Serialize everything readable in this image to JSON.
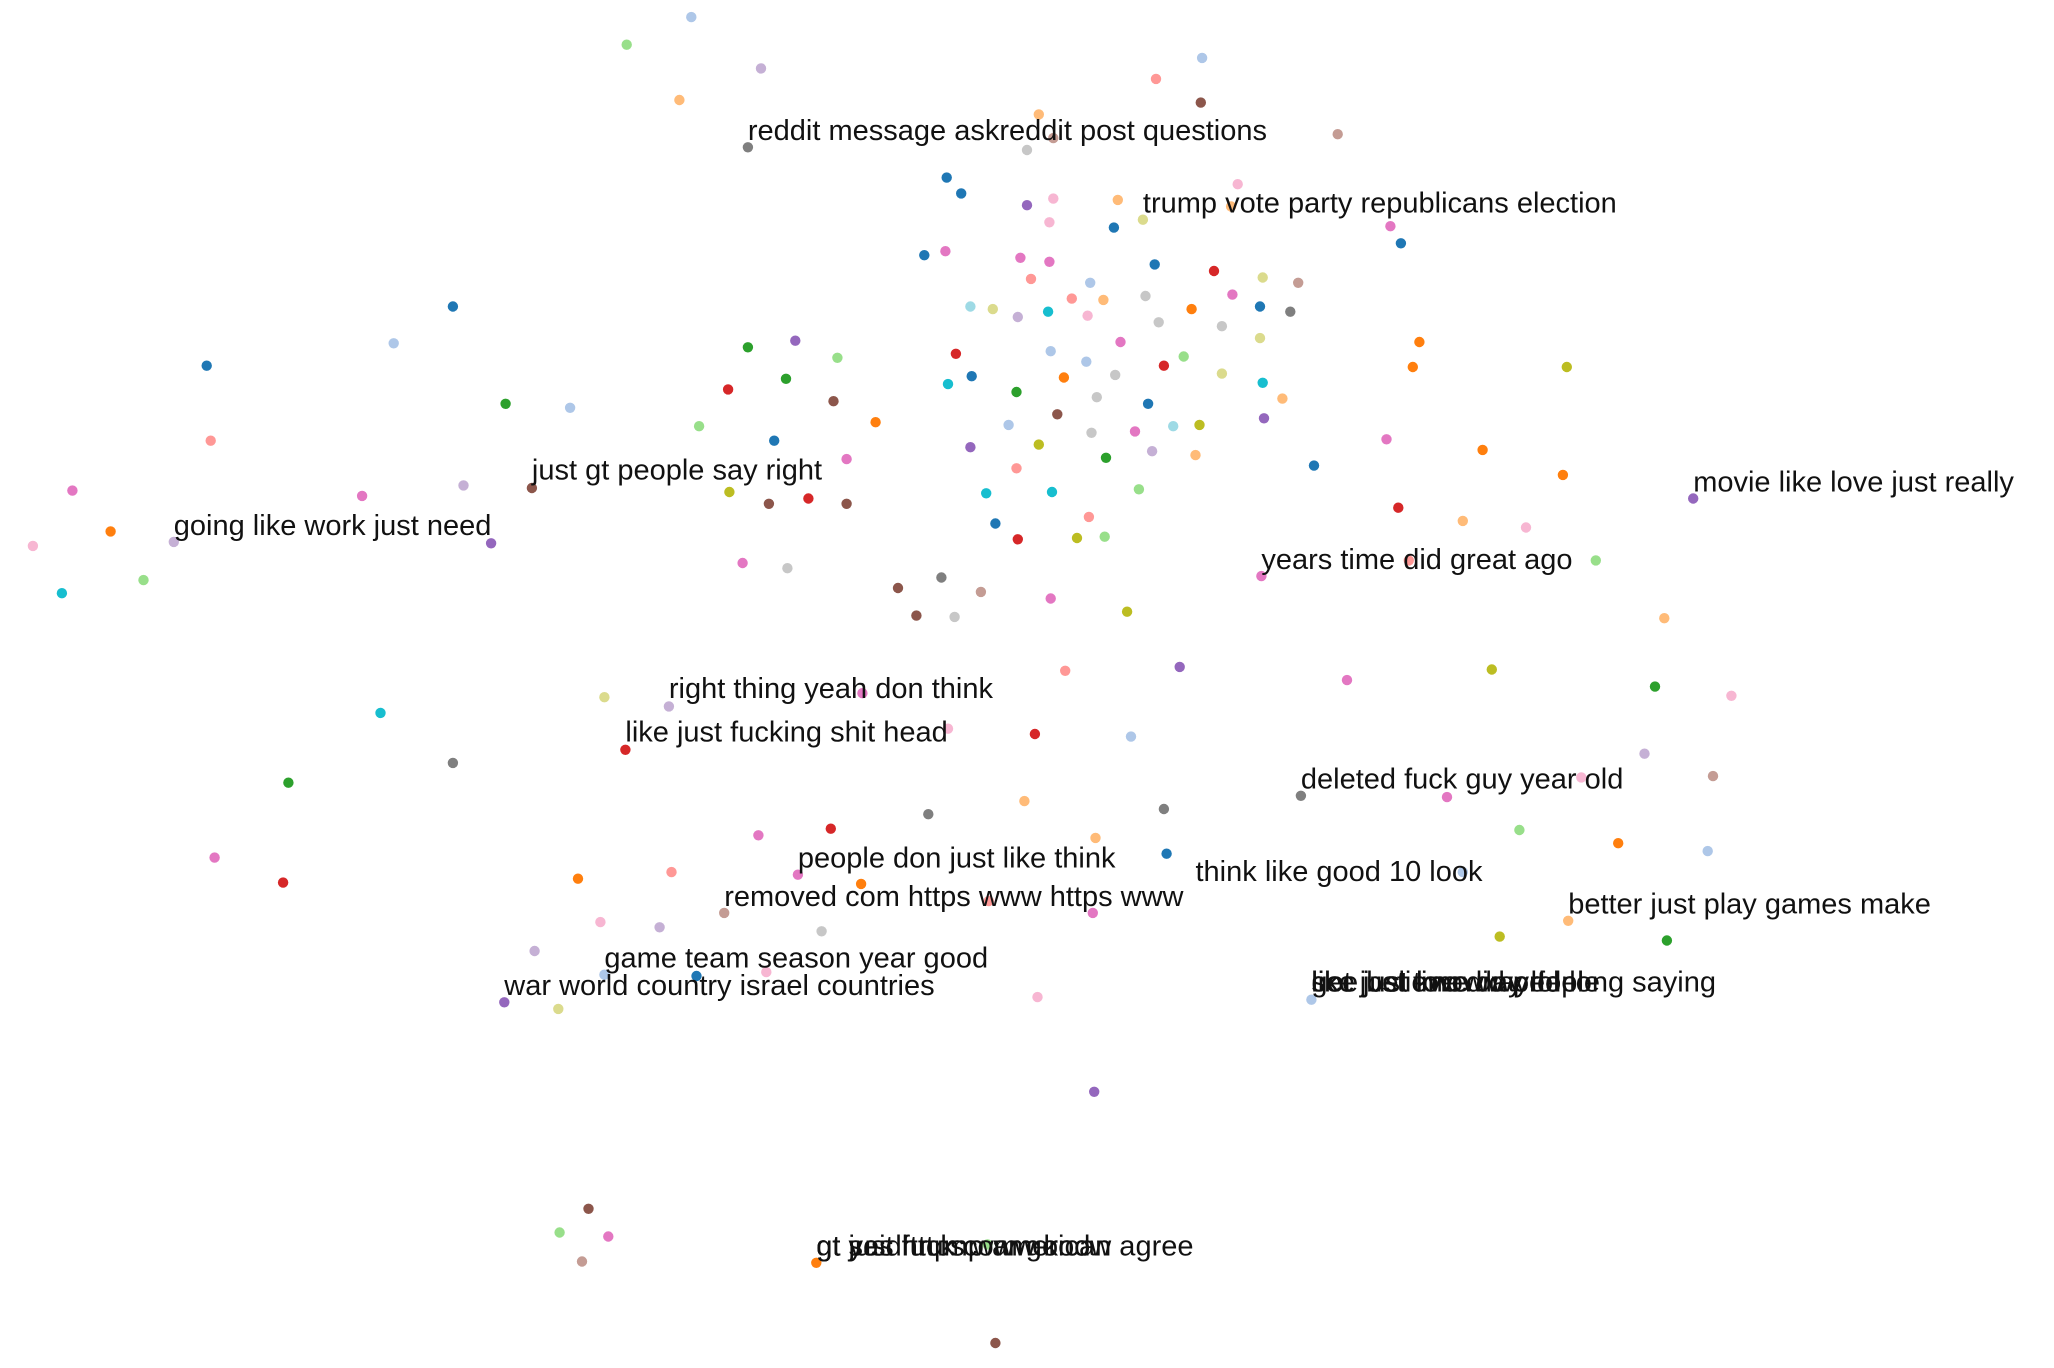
{
  "chart_data": {
    "type": "scatter",
    "title": "",
    "xlabel": "",
    "ylabel": "",
    "grid": false,
    "legend": "none",
    "xlim": [
      0,
      1560
    ],
    "ylim": [
      0,
      1040
    ],
    "points": [
      {
        "x": 525,
        "y": 13,
        "color": "#aec7e8"
      },
      {
        "x": 476,
        "y": 34,
        "color": "#98df8a"
      },
      {
        "x": 578,
        "y": 52,
        "color": "#c5b0d5"
      },
      {
        "x": 516,
        "y": 76,
        "color": "#ffbb78"
      },
      {
        "x": 913,
        "y": 44,
        "color": "#aec7e8"
      },
      {
        "x": 878,
        "y": 60,
        "color": "#ff9896"
      },
      {
        "x": 912,
        "y": 78,
        "color": "#8c564b"
      },
      {
        "x": 789,
        "y": 87,
        "color": "#ffbb78"
      },
      {
        "x": 1016,
        "y": 102,
        "color": "#c49c94"
      },
      {
        "x": 568,
        "y": 112,
        "color": "#7f7f7f"
      },
      {
        "x": 780,
        "y": 114,
        "color": "#c7c7c7"
      },
      {
        "x": 800,
        "y": 105,
        "color": "#c49c94"
      },
      {
        "x": 719,
        "y": 135,
        "color": "#1f77b4"
      },
      {
        "x": 730,
        "y": 147,
        "color": "#1f77b4"
      },
      {
        "x": 780,
        "y": 156,
        "color": "#9467bd"
      },
      {
        "x": 800,
        "y": 151,
        "color": "#f7b6d2"
      },
      {
        "x": 849,
        "y": 152,
        "color": "#ffbb78"
      },
      {
        "x": 940,
        "y": 140,
        "color": "#f7b6d2"
      },
      {
        "x": 935,
        "y": 157,
        "color": "#ffbb78"
      },
      {
        "x": 868,
        "y": 167,
        "color": "#dbdb8d"
      },
      {
        "x": 846,
        "y": 173,
        "color": "#1f77b4"
      },
      {
        "x": 797,
        "y": 169,
        "color": "#f7b6d2"
      },
      {
        "x": 1056,
        "y": 172,
        "color": "#e377c2"
      },
      {
        "x": 1064,
        "y": 185,
        "color": "#1f77b4"
      },
      {
        "x": 702,
        "y": 194,
        "color": "#1f77b4"
      },
      {
        "x": 718,
        "y": 191,
        "color": "#e377c2"
      },
      {
        "x": 775,
        "y": 196,
        "color": "#e377c2"
      },
      {
        "x": 797,
        "y": 199,
        "color": "#e377c2"
      },
      {
        "x": 877,
        "y": 201,
        "color": "#1f77b4"
      },
      {
        "x": 922,
        "y": 206,
        "color": "#d62728"
      },
      {
        "x": 959,
        "y": 211,
        "color": "#dbdb8d"
      },
      {
        "x": 986,
        "y": 215,
        "color": "#c49c94"
      },
      {
        "x": 783,
        "y": 212,
        "color": "#ff9896"
      },
      {
        "x": 828,
        "y": 215,
        "color": "#aec7e8"
      },
      {
        "x": 936,
        "y": 224,
        "color": "#e377c2"
      },
      {
        "x": 737,
        "y": 233,
        "color": "#9edae5"
      },
      {
        "x": 754,
        "y": 235,
        "color": "#dbdb8d"
      },
      {
        "x": 773,
        "y": 241,
        "color": "#c5b0d5"
      },
      {
        "x": 796,
        "y": 237,
        "color": "#17becf"
      },
      {
        "x": 814,
        "y": 227,
        "color": "#ff9896"
      },
      {
        "x": 826,
        "y": 240,
        "color": "#f7b6d2"
      },
      {
        "x": 838,
        "y": 228,
        "color": "#ffbb78"
      },
      {
        "x": 870,
        "y": 225,
        "color": "#c7c7c7"
      },
      {
        "x": 880,
        "y": 245,
        "color": "#c7c7c7"
      },
      {
        "x": 905,
        "y": 235,
        "color": "#ff7f0e"
      },
      {
        "x": 928,
        "y": 248,
        "color": "#c7c7c7"
      },
      {
        "x": 957,
        "y": 233,
        "color": "#1f77b4"
      },
      {
        "x": 980,
        "y": 237,
        "color": "#7f7f7f"
      },
      {
        "x": 957,
        "y": 257,
        "color": "#dbdb8d"
      },
      {
        "x": 344,
        "y": 233,
        "color": "#1f77b4"
      },
      {
        "x": 299,
        "y": 261,
        "color": "#aec7e8"
      },
      {
        "x": 157,
        "y": 278,
        "color": "#1f77b4"
      },
      {
        "x": 568,
        "y": 264,
        "color": "#2ca02c"
      },
      {
        "x": 604,
        "y": 259,
        "color": "#9467bd"
      },
      {
        "x": 636,
        "y": 272,
        "color": "#98df8a"
      },
      {
        "x": 726,
        "y": 269,
        "color": "#d62728"
      },
      {
        "x": 798,
        "y": 267,
        "color": "#aec7e8"
      },
      {
        "x": 825,
        "y": 275,
        "color": "#aec7e8"
      },
      {
        "x": 851,
        "y": 260,
        "color": "#e377c2"
      },
      {
        "x": 884,
        "y": 278,
        "color": "#d62728"
      },
      {
        "x": 899,
        "y": 271,
        "color": "#98df8a"
      },
      {
        "x": 928,
        "y": 284,
        "color": "#dbdb8d"
      },
      {
        "x": 959,
        "y": 291,
        "color": "#17becf"
      },
      {
        "x": 974,
        "y": 303,
        "color": "#ffbb78"
      },
      {
        "x": 1078,
        "y": 260,
        "color": "#ff7f0e"
      },
      {
        "x": 1073,
        "y": 279,
        "color": "#ff7f0e"
      },
      {
        "x": 1190,
        "y": 279,
        "color": "#bcbd22"
      },
      {
        "x": 597,
        "y": 288,
        "color": "#2ca02c"
      },
      {
        "x": 553,
        "y": 296,
        "color": "#d62728"
      },
      {
        "x": 738,
        "y": 286,
        "color": "#1f77b4"
      },
      {
        "x": 720,
        "y": 292,
        "color": "#17becf"
      },
      {
        "x": 772,
        "y": 298,
        "color": "#2ca02c"
      },
      {
        "x": 808,
        "y": 287,
        "color": "#ff7f0e"
      },
      {
        "x": 847,
        "y": 285,
        "color": "#c7c7c7"
      },
      {
        "x": 833,
        "y": 302,
        "color": "#c7c7c7"
      },
      {
        "x": 872,
        "y": 307,
        "color": "#1f77b4"
      },
      {
        "x": 633,
        "y": 305,
        "color": "#8c564b"
      },
      {
        "x": 384,
        "y": 307,
        "color": "#2ca02c"
      },
      {
        "x": 433,
        "y": 310,
        "color": "#aec7e8"
      },
      {
        "x": 160,
        "y": 335,
        "color": "#ff9896"
      },
      {
        "x": 665,
        "y": 321,
        "color": "#ff7f0e"
      },
      {
        "x": 531,
        "y": 324,
        "color": "#98df8a"
      },
      {
        "x": 588,
        "y": 335,
        "color": "#1f77b4"
      },
      {
        "x": 766,
        "y": 323,
        "color": "#aec7e8"
      },
      {
        "x": 803,
        "y": 315,
        "color": "#8c564b"
      },
      {
        "x": 829,
        "y": 329,
        "color": "#c7c7c7"
      },
      {
        "x": 862,
        "y": 328,
        "color": "#e377c2"
      },
      {
        "x": 891,
        "y": 324,
        "color": "#9edae5"
      },
      {
        "x": 911,
        "y": 323,
        "color": "#bcbd22"
      },
      {
        "x": 960,
        "y": 318,
        "color": "#9467bd"
      },
      {
        "x": 998,
        "y": 354,
        "color": "#1f77b4"
      },
      {
        "x": 1053,
        "y": 334,
        "color": "#e377c2"
      },
      {
        "x": 1126,
        "y": 342,
        "color": "#ff7f0e"
      },
      {
        "x": 1187,
        "y": 361,
        "color": "#ff7f0e"
      },
      {
        "x": 737,
        "y": 340,
        "color": "#9467bd"
      },
      {
        "x": 789,
        "y": 338,
        "color": "#bcbd22"
      },
      {
        "x": 840,
        "y": 348,
        "color": "#2ca02c"
      },
      {
        "x": 875,
        "y": 343,
        "color": "#c5b0d5"
      },
      {
        "x": 908,
        "y": 346,
        "color": "#ffbb78"
      },
      {
        "x": 643,
        "y": 349,
        "color": "#e377c2"
      },
      {
        "x": 772,
        "y": 356,
        "color": "#ff9896"
      },
      {
        "x": 55,
        "y": 373,
        "color": "#e377c2"
      },
      {
        "x": 275,
        "y": 377,
        "color": "#e377c2"
      },
      {
        "x": 352,
        "y": 369,
        "color": "#c5b0d5"
      },
      {
        "x": 404,
        "y": 371,
        "color": "#8c564b"
      },
      {
        "x": 554,
        "y": 374,
        "color": "#bcbd22"
      },
      {
        "x": 614,
        "y": 379,
        "color": "#d62728"
      },
      {
        "x": 584,
        "y": 383,
        "color": "#8c564b"
      },
      {
        "x": 643,
        "y": 383,
        "color": "#8c564b"
      },
      {
        "x": 749,
        "y": 375,
        "color": "#17becf"
      },
      {
        "x": 799,
        "y": 374,
        "color": "#17becf"
      },
      {
        "x": 865,
        "y": 372,
        "color": "#98df8a"
      },
      {
        "x": 1062,
        "y": 386,
        "color": "#d62728"
      },
      {
        "x": 1111,
        "y": 396,
        "color": "#ffbb78"
      },
      {
        "x": 1159,
        "y": 401,
        "color": "#f7b6d2"
      },
      {
        "x": 1286,
        "y": 379,
        "color": "#9467bd"
      },
      {
        "x": 84,
        "y": 404,
        "color": "#ff7f0e"
      },
      {
        "x": 132,
        "y": 412,
        "color": "#c5b0d5"
      },
      {
        "x": 25,
        "y": 415,
        "color": "#f7b6d2"
      },
      {
        "x": 373,
        "y": 413,
        "color": "#9467bd"
      },
      {
        "x": 756,
        "y": 398,
        "color": "#1f77b4"
      },
      {
        "x": 773,
        "y": 410,
        "color": "#d62728"
      },
      {
        "x": 818,
        "y": 409,
        "color": "#bcbd22"
      },
      {
        "x": 839,
        "y": 408,
        "color": "#98df8a"
      },
      {
        "x": 827,
        "y": 393,
        "color": "#ff9896"
      },
      {
        "x": 1070,
        "y": 426,
        "color": "#ff9896"
      },
      {
        "x": 1212,
        "y": 426,
        "color": "#98df8a"
      },
      {
        "x": 564,
        "y": 428,
        "color": "#e377c2"
      },
      {
        "x": 598,
        "y": 432,
        "color": "#c7c7c7"
      },
      {
        "x": 958,
        "y": 438,
        "color": "#e377c2"
      },
      {
        "x": 109,
        "y": 441,
        "color": "#98df8a"
      },
      {
        "x": 47,
        "y": 451,
        "color": "#17becf"
      },
      {
        "x": 715,
        "y": 439,
        "color": "#7f7f7f"
      },
      {
        "x": 682,
        "y": 447,
        "color": "#8c564b"
      },
      {
        "x": 745,
        "y": 450,
        "color": "#c49c94"
      },
      {
        "x": 798,
        "y": 455,
        "color": "#e377c2"
      },
      {
        "x": 696,
        "y": 468,
        "color": "#8c564b"
      },
      {
        "x": 725,
        "y": 469,
        "color": "#c7c7c7"
      },
      {
        "x": 856,
        "y": 465,
        "color": "#bcbd22"
      },
      {
        "x": 1264,
        "y": 470,
        "color": "#ffbb78"
      },
      {
        "x": 896,
        "y": 507,
        "color": "#9467bd"
      },
      {
        "x": 809,
        "y": 510,
        "color": "#ff9896"
      },
      {
        "x": 1133,
        "y": 509,
        "color": "#bcbd22"
      },
      {
        "x": 1023,
        "y": 517,
        "color": "#e377c2"
      },
      {
        "x": 1257,
        "y": 522,
        "color": "#2ca02c"
      },
      {
        "x": 1315,
        "y": 529,
        "color": "#f7b6d2"
      },
      {
        "x": 459,
        "y": 530,
        "color": "#dbdb8d"
      },
      {
        "x": 508,
        "y": 537,
        "color": "#c5b0d5"
      },
      {
        "x": 655,
        "y": 527,
        "color": "#e377c2"
      },
      {
        "x": 289,
        "y": 542,
        "color": "#17becf"
      },
      {
        "x": 720,
        "y": 554,
        "color": "#f7b6d2"
      },
      {
        "x": 786,
        "y": 558,
        "color": "#d62728"
      },
      {
        "x": 859,
        "y": 560,
        "color": "#aec7e8"
      },
      {
        "x": 475,
        "y": 570,
        "color": "#d62728"
      },
      {
        "x": 1249,
        "y": 573,
        "color": "#c5b0d5"
      },
      {
        "x": 344,
        "y": 580,
        "color": "#7f7f7f"
      },
      {
        "x": 1201,
        "y": 591,
        "color": "#f7b6d2"
      },
      {
        "x": 1301,
        "y": 590,
        "color": "#c49c94"
      },
      {
        "x": 219,
        "y": 595,
        "color": "#2ca02c"
      },
      {
        "x": 988,
        "y": 605,
        "color": "#7f7f7f"
      },
      {
        "x": 1099,
        "y": 606,
        "color": "#e377c2"
      },
      {
        "x": 778,
        "y": 609,
        "color": "#ffbb78"
      },
      {
        "x": 884,
        "y": 615,
        "color": "#7f7f7f"
      },
      {
        "x": 705,
        "y": 619,
        "color": "#7f7f7f"
      },
      {
        "x": 631,
        "y": 630,
        "color": "#d62728"
      },
      {
        "x": 576,
        "y": 635,
        "color": "#e377c2"
      },
      {
        "x": 832,
        "y": 637,
        "color": "#ffbb78"
      },
      {
        "x": 1154,
        "y": 631,
        "color": "#98df8a"
      },
      {
        "x": 1229,
        "y": 641,
        "color": "#ff7f0e"
      },
      {
        "x": 1297,
        "y": 647,
        "color": "#aec7e8"
      },
      {
        "x": 886,
        "y": 649,
        "color": "#1f77b4"
      },
      {
        "x": 163,
        "y": 652,
        "color": "#e377c2"
      },
      {
        "x": 510,
        "y": 663,
        "color": "#ff9896"
      },
      {
        "x": 439,
        "y": 668,
        "color": "#ff7f0e"
      },
      {
        "x": 606,
        "y": 665,
        "color": "#e377c2"
      },
      {
        "x": 654,
        "y": 672,
        "color": "#ff7f0e"
      },
      {
        "x": 1111,
        "y": 663,
        "color": "#aec7e8"
      },
      {
        "x": 215,
        "y": 671,
        "color": "#d62728"
      },
      {
        "x": 751,
        "y": 685,
        "color": "#ff9896"
      },
      {
        "x": 550,
        "y": 694,
        "color": "#c49c94"
      },
      {
        "x": 830,
        "y": 694,
        "color": "#e377c2"
      },
      {
        "x": 1191,
        "y": 700,
        "color": "#ffbb78"
      },
      {
        "x": 456,
        "y": 701,
        "color": "#f7b6d2"
      },
      {
        "x": 501,
        "y": 705,
        "color": "#c5b0d5"
      },
      {
        "x": 624,
        "y": 708,
        "color": "#c7c7c7"
      },
      {
        "x": 1139,
        "y": 712,
        "color": "#bcbd22"
      },
      {
        "x": 1266,
        "y": 715,
        "color": "#2ca02c"
      },
      {
        "x": 406,
        "y": 723,
        "color": "#c5b0d5"
      },
      {
        "x": 459,
        "y": 741,
        "color": "#aec7e8"
      },
      {
        "x": 529,
        "y": 742,
        "color": "#1f77b4"
      },
      {
        "x": 582,
        "y": 739,
        "color": "#f7b6d2"
      },
      {
        "x": 788,
        "y": 758,
        "color": "#f7b6d2"
      },
      {
        "x": 996,
        "y": 760,
        "color": "#aec7e8"
      },
      {
        "x": 383,
        "y": 762,
        "color": "#9467bd"
      },
      {
        "x": 424,
        "y": 767,
        "color": "#dbdb8d"
      },
      {
        "x": 831,
        "y": 830,
        "color": "#9467bd"
      },
      {
        "x": 447,
        "y": 919,
        "color": "#8c564b"
      },
      {
        "x": 425,
        "y": 937,
        "color": "#98df8a"
      },
      {
        "x": 462,
        "y": 940,
        "color": "#e377c2"
      },
      {
        "x": 750,
        "y": 946,
        "color": "#98df8a"
      },
      {
        "x": 442,
        "y": 959,
        "color": "#c49c94"
      },
      {
        "x": 620,
        "y": 960,
        "color": "#ff7f0e"
      },
      {
        "x": 756,
        "y": 1021,
        "color": "#8c564b"
      }
    ],
    "annotations": [
      {
        "text": "reddit message askreddit post questions",
        "x": 568,
        "y": 99
      },
      {
        "text": "trump vote party republicans election",
        "x": 868,
        "y": 154
      },
      {
        "text": "just gt people say right",
        "x": 404,
        "y": 357
      },
      {
        "text": "movie like love just really",
        "x": 1286,
        "y": 366
      },
      {
        "text": "going like work just need",
        "x": 132,
        "y": 399
      },
      {
        "text": "years time did great ago",
        "x": 958,
        "y": 425
      },
      {
        "text": "right thing yeah don think",
        "x": 508,
        "y": 523
      },
      {
        "text": "like just fucking shit head",
        "x": 475,
        "y": 556
      },
      {
        "text": "deleted fuck guy year old",
        "x": 988,
        "y": 592
      },
      {
        "text": "people don just like think",
        "x": 606,
        "y": 652
      },
      {
        "text": "think like good 10 look",
        "x": 908,
        "y": 662
      },
      {
        "text": "removed com https www https www",
        "x": 550,
        "y": 681
      },
      {
        "text": "better just play games make",
        "x": 1191,
        "y": 687
      },
      {
        "text": "game team season year good",
        "x": 459,
        "y": 728
      },
      {
        "text": "war world country israel countries",
        "x": 383,
        "y": 749
      },
      {
        "text": "got just time day lol",
        "x": 996,
        "y": 746
      },
      {
        "text": "like just love way feel",
        "x": 996,
        "y": 746
      },
      {
        "text": "see believe did people",
        "x": 996,
        "y": 746
      },
      {
        "text": "like just know world long saying",
        "x": 996,
        "y": 746
      },
      {
        "text": "gt yes fuck com good",
        "x": 620,
        "y": 947
      },
      {
        "text": "gt said trump american agree",
        "x": 620,
        "y": 947
      },
      {
        "text": "gt just https www know",
        "x": 620,
        "y": 947
      }
    ]
  }
}
